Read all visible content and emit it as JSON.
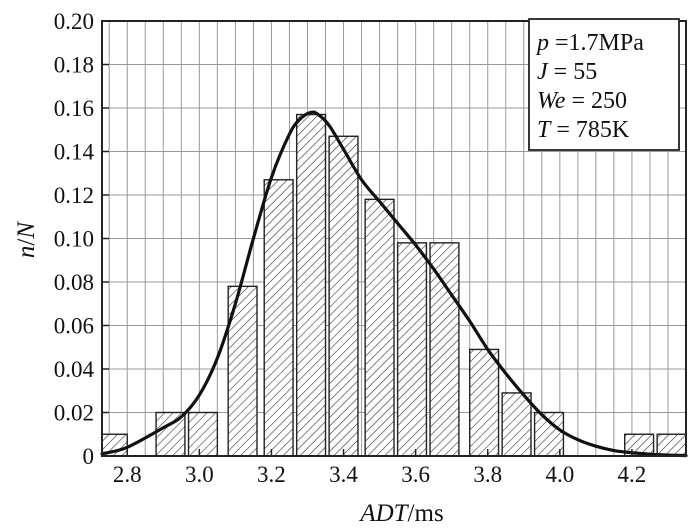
{
  "chart_data": {
    "type": "bar",
    "subtype": "histogram-with-fit-curve",
    "xlabel": "ADT/ms",
    "xlabel_parts": {
      "italic": "ADT",
      "normal": "/ms"
    },
    "ylabel": "n/N",
    "ylabel_parts": {
      "italic_n": "n",
      "slash": "/",
      "italic_N": "N"
    },
    "xlim": [
      2.73,
      4.35
    ],
    "ylim": [
      0,
      0.2
    ],
    "x_ticks": [
      2.8,
      3.0,
      3.2,
      3.4,
      3.6,
      3.8,
      4.0,
      4.2
    ],
    "x_tick_labels": [
      "2.8",
      "3.0",
      "3.2",
      "3.4",
      "3.6",
      "3.8",
      "4.0",
      "4.2"
    ],
    "y_ticks": [
      0,
      0.02,
      0.04,
      0.06,
      0.08,
      0.1,
      0.12,
      0.14,
      0.16,
      0.18,
      0.2
    ],
    "y_tick_labels": [
      "0",
      "0.02",
      "0.04",
      "0.06",
      "0.08",
      "0.10",
      "0.12",
      "0.14",
      "0.16",
      "0.18",
      "0.20"
    ],
    "bin_width": 0.08,
    "bars": [
      {
        "center": 2.76,
        "value": 0.01
      },
      {
        "center": 2.92,
        "value": 0.02
      },
      {
        "center": 3.01,
        "value": 0.02
      },
      {
        "center": 3.12,
        "value": 0.078
      },
      {
        "center": 3.22,
        "value": 0.127
      },
      {
        "center": 3.31,
        "value": 0.157
      },
      {
        "center": 3.4,
        "value": 0.147
      },
      {
        "center": 3.5,
        "value": 0.118
      },
      {
        "center": 3.59,
        "value": 0.098
      },
      {
        "center": 3.68,
        "value": 0.098
      },
      {
        "center": 3.79,
        "value": 0.049
      },
      {
        "center": 3.88,
        "value": 0.029
      },
      {
        "center": 3.97,
        "value": 0.02
      },
      {
        "center": 4.22,
        "value": 0.01
      },
      {
        "center": 4.31,
        "value": 0.01
      }
    ],
    "fit_curve": {
      "x": [
        2.73,
        2.8,
        2.9,
        2.95,
        3.0,
        3.05,
        3.1,
        3.15,
        3.2,
        3.25,
        3.28,
        3.31,
        3.33,
        3.36,
        3.4,
        3.45,
        3.5,
        3.55,
        3.6,
        3.65,
        3.7,
        3.75,
        3.8,
        3.85,
        3.9,
        3.95,
        4.0,
        4.05,
        4.1,
        4.15,
        4.2,
        4.25,
        4.3,
        4.35
      ],
      "y": [
        0.001,
        0.004,
        0.013,
        0.018,
        0.028,
        0.045,
        0.07,
        0.1,
        0.128,
        0.148,
        0.155,
        0.158,
        0.157,
        0.152,
        0.141,
        0.127,
        0.117,
        0.107,
        0.097,
        0.086,
        0.074,
        0.062,
        0.049,
        0.038,
        0.028,
        0.019,
        0.012,
        0.0075,
        0.0045,
        0.0025,
        0.0015,
        0.0008,
        0.0004,
        0.0002
      ]
    },
    "grid": true,
    "legend_position": "top-right",
    "annotation_box": {
      "lines": [
        {
          "italic": "p",
          "rest": " =1.7MPa"
        },
        {
          "italic": "J",
          "rest": " = 55"
        },
        {
          "italic": "We",
          "rest": " = 250"
        },
        {
          "italic": "T",
          "rest": " = 785K"
        }
      ]
    }
  }
}
